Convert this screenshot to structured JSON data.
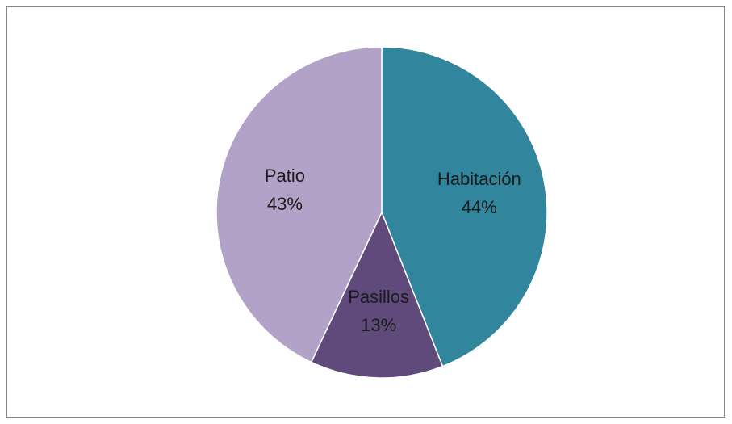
{
  "chart_data": {
    "type": "pie",
    "categories": [
      "Habitación",
      "Pasillos",
      "Patio"
    ],
    "values": [
      44,
      13,
      43
    ],
    "value_labels": [
      "44%",
      "13%",
      "43%"
    ],
    "colors": [
      "#31859c",
      "#604a7b",
      "#b3a2c7"
    ]
  }
}
